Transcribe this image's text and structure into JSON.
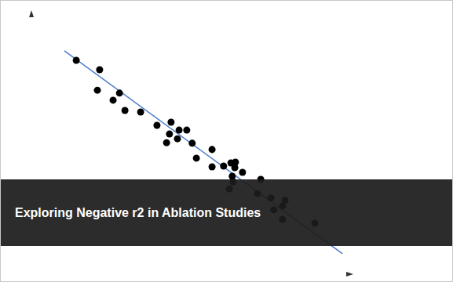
{
  "chart_data": {
    "type": "scatter",
    "title": "Exploring Negative r2 in Ablation Studies",
    "x": [
      14.0,
      21.3,
      20.6,
      27.5,
      25.5,
      29.2,
      34.1,
      39.2,
      43.6,
      43.1,
      42.2,
      46.1,
      48.5,
      45.6,
      50.2,
      51.5,
      56.4,
      56.4,
      60.0,
      62.3,
      63.7,
      63.5,
      65.9,
      62.7,
      61.8,
      63.0,
      71.6,
      70.6,
      74.8,
      79.2,
      78.4,
      75.7,
      78.4,
      88.5
    ],
    "values": [
      81.5,
      77.9,
      70.1,
      69.0,
      66.3,
      62.4,
      61.8,
      56.7,
      57.9,
      53.4,
      50.1,
      54.9,
      54.9,
      51.6,
      49.9,
      44.2,
      47.5,
      40.9,
      41.2,
      42.4,
      42.7,
      40.6,
      38.8,
      37.3,
      32.5,
      35.2,
      36.1,
      30.7,
      29.0,
      28.1,
      26.0,
      24.5,
      20.9,
      19.4
    ],
    "color": "#000000",
    "marker": "circle",
    "fit": {
      "x": [
        10.3,
        97.1
      ],
      "values": [
        85.1,
        7.8
      ],
      "color": "#4a7cc9",
      "line_style": "solid"
    },
    "xlim": [
      0,
      100
    ],
    "ylim": [
      0,
      100
    ],
    "tick_labels": false,
    "grid": false
  }
}
